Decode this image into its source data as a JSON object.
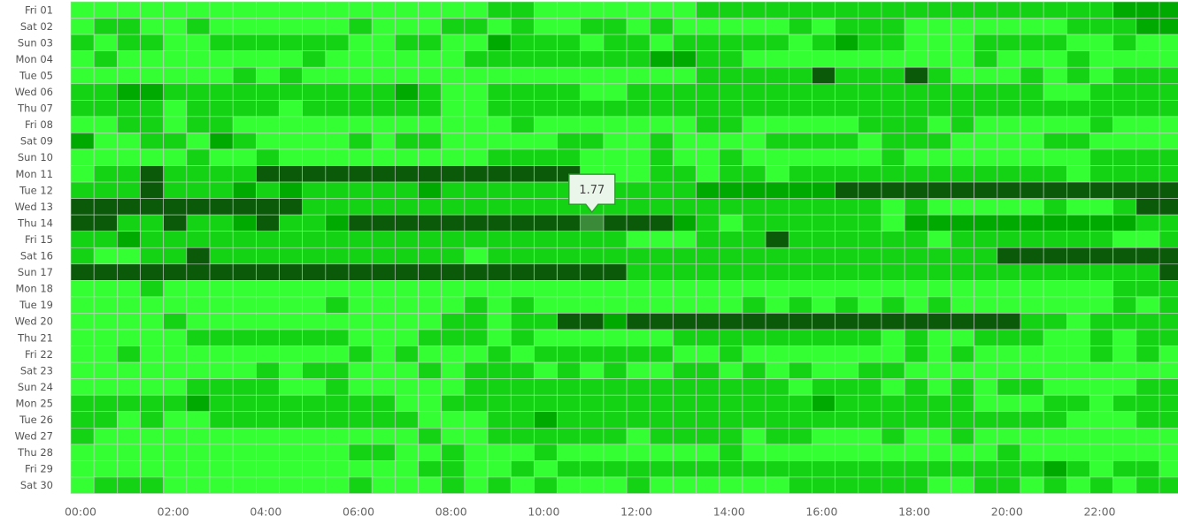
{
  "chart_data": {
    "type": "heatmap",
    "title": "",
    "xlabel": "",
    "ylabel": "",
    "x_tick_labels": [
      "00:00",
      "02:00",
      "04:00",
      "06:00",
      "08:00",
      "10:00",
      "12:00",
      "14:00",
      "16:00",
      "18:00",
      "20:00",
      "22:00"
    ],
    "y_categories": [
      "Fri 01",
      "Sat 02",
      "Sun 03",
      "Mon 04",
      "Tue 05",
      "Wed 06",
      "Thu 07",
      "Fri 08",
      "Sat 09",
      "Sun 10",
      "Mon 11",
      "Tue 12",
      "Wed 13",
      "Thu 14",
      "Fri 15",
      "Sat 16",
      "Sun 17",
      "Mon 18",
      "Tue 19",
      "Wed 20",
      "Thu 21",
      "Fri 22",
      "Sat 23",
      "Sun 24",
      "Mon 25",
      "Tue 26",
      "Wed 27",
      "Thu 28",
      "Fri 29",
      "Sat 30"
    ],
    "x_intervals_per_day": 48,
    "interval_minutes": 30,
    "color_levels": [
      "#33ff33",
      "#14d214",
      "#00aa00",
      "#0a5a0a",
      "#003300"
    ],
    "cell_border_color": "#cccccc",
    "level_rows": [
      "000000000000000000110000000111111111111111111222",
      "011001000000100011010011010000010111000000011122",
      "101100111111001100211101101111101211000111100100",
      "010000000010000001111111122110000000000100010000",
      "000000010100000000000000000111113111310001010111",
      "112211111111112100111100111111111111111111001111",
      "111101111011111100111111111111111111111111111111",
      "001101100000000000010000000110000011101000001000",
      "200110210000101100000110010000111101110000110000",
      "000001001000000000111100010010000001000000001111",
      "011311113333333333333300011011011111111111101111",
      "111311121211111211111111111222222333333333333333",
      "333333333311111111111111111111111110100000100133",
      "331131123112333333333333332101111110222222222211",
      "112111111111111111111111000111311111101111111001",
      "100113111111111110111111111111111111111133333333",
      "333333333333333333333333111111111111111111111113",
      "000100000000000000000000000000000000000000000111",
      "000000000001000001010000000001010101010000000101",
      "000010000000000011011332333333333333333331101111",
      "000001111111000111010000001111111110100111001011",
      "001000000000101000101111110010000000101000001010",
      "000000001011000101110101001101010011000000000000",
      "000001111001000001111111111111101110101011000011",
      "111112111111110011111111111111112111111000110111",
      "110100111111111000112111111111111111111111100011",
      "100000000000000100111111011110110001001000000000",
      "000000000000110010001000000010000000000010000000",
      "000000000000000110010111111111111111111111210110",
      "011100000000100010101000100000011111100110101011"
    ],
    "tooltip": {
      "value": "1.77",
      "row": "Thu 14",
      "column": 22
    }
  }
}
